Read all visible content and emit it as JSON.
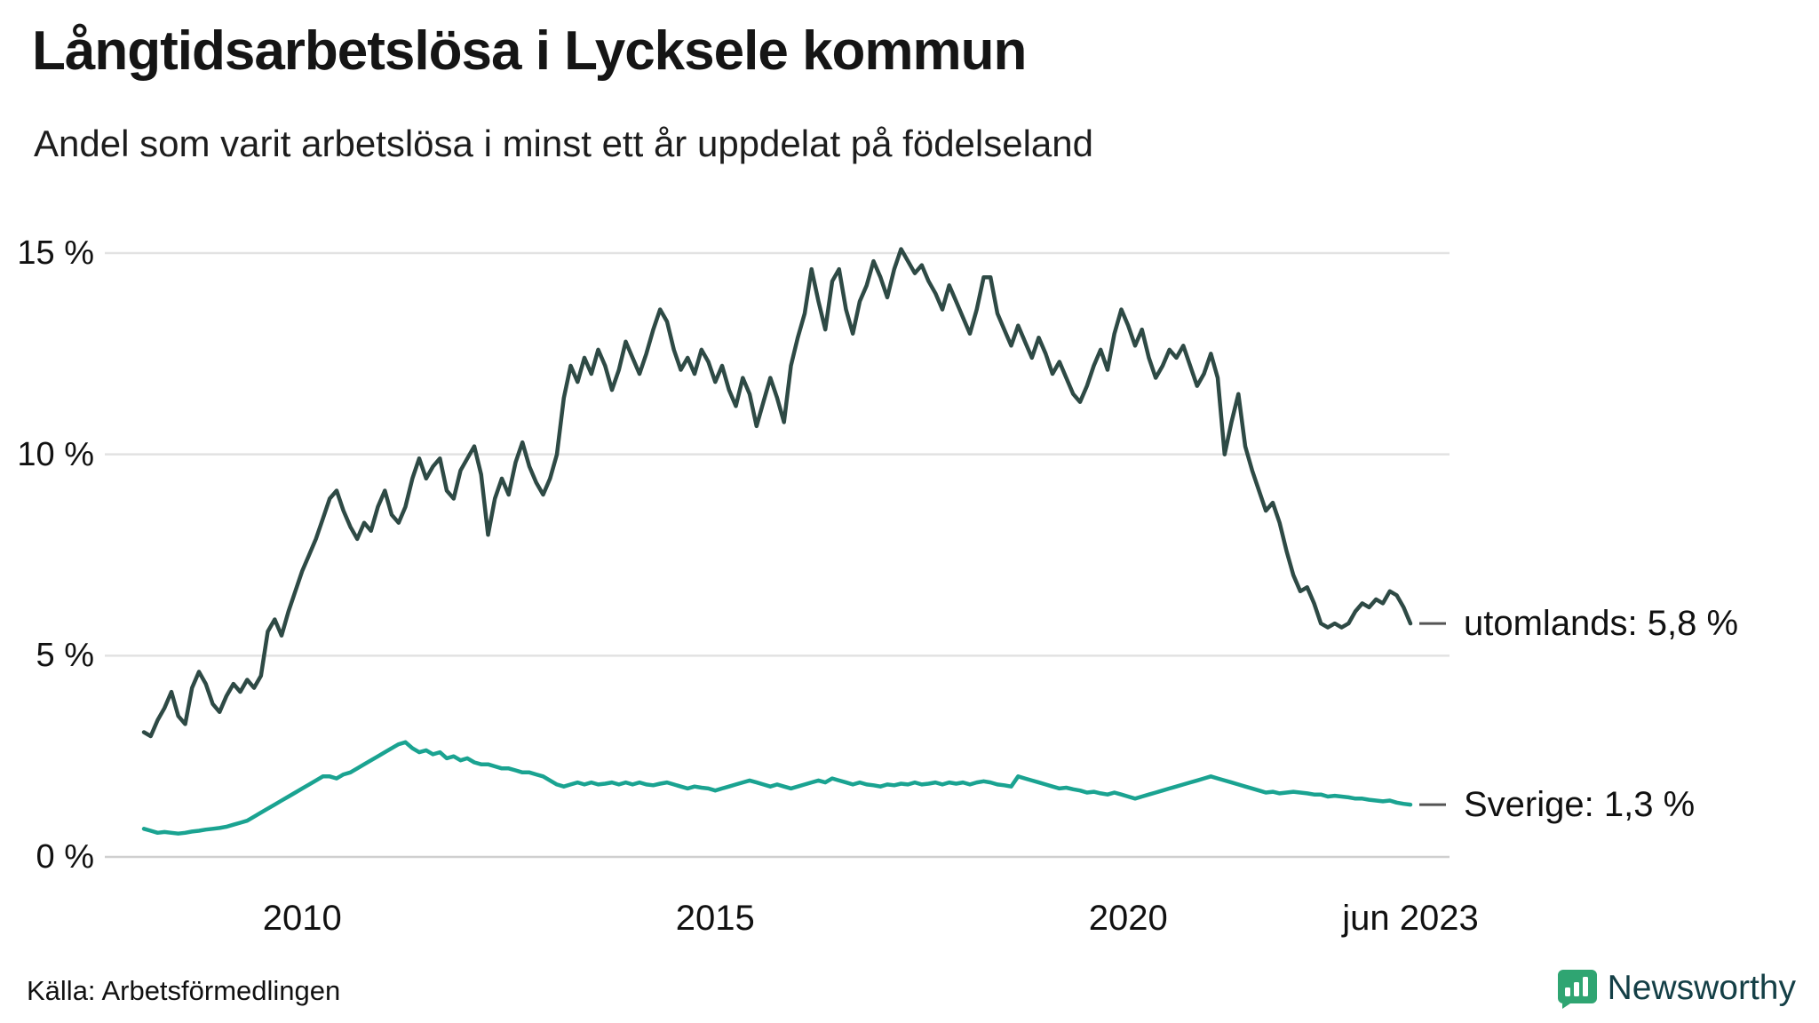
{
  "title": "Långtidsarbetslösa i Lycksele kommun",
  "subtitle": "Andel som varit arbetslösa i minst ett år uppdelat på födelseland",
  "source": "Källa: Arbetsförmedlingen",
  "brand": {
    "name": "Newsworthy",
    "icon_color": "#2fa572",
    "word_color": "#143f46"
  },
  "chart_data": {
    "type": "line",
    "title": "Långtidsarbetslösa i Lycksele kommun",
    "subtitle": "Andel som varit arbetslösa i minst ett år uppdelat på födelseland",
    "unit": "%",
    "frequency": "monthly",
    "x_domain": [
      2008.083,
      2023.417
    ],
    "ylim": [
      0,
      15.5
    ],
    "grid": "horizontal",
    "grid_color": "#e2e2e2",
    "zero_line_color": "#cfcfcf",
    "y_ticks": [
      {
        "label": "0 %",
        "value": 0
      },
      {
        "label": "5 %",
        "value": 5
      },
      {
        "label": "10 %",
        "value": 10
      },
      {
        "label": "15 %",
        "value": 15
      }
    ],
    "x_ticks": [
      {
        "label": "2010",
        "year": 2010
      },
      {
        "label": "2015",
        "year": 2015
      },
      {
        "label": "2020",
        "year": 2020
      },
      {
        "label": "jun 2023",
        "year": 2023.417
      }
    ],
    "legend_position": "right-annotations",
    "series": [
      {
        "name": "utomlands",
        "end_label": "utomlands: 5,8 %",
        "end_value": 5.8,
        "color": "#2e4a45",
        "values": [
          3.1,
          3.0,
          3.4,
          3.7,
          4.1,
          3.5,
          3.3,
          4.2,
          4.6,
          4.3,
          3.8,
          3.6,
          4.0,
          4.3,
          4.1,
          4.4,
          4.2,
          4.5,
          5.6,
          5.9,
          5.5,
          6.1,
          6.6,
          7.1,
          7.5,
          7.9,
          8.4,
          8.9,
          9.1,
          8.6,
          8.2,
          7.9,
          8.3,
          8.1,
          8.7,
          9.1,
          8.5,
          8.3,
          8.7,
          9.4,
          9.9,
          9.4,
          9.7,
          9.9,
          9.1,
          8.9,
          9.6,
          9.9,
          10.2,
          9.5,
          8.0,
          8.9,
          9.4,
          9.0,
          9.8,
          10.3,
          9.7,
          9.3,
          9.0,
          9.4,
          10.0,
          11.4,
          12.2,
          11.8,
          12.4,
          12.0,
          12.6,
          12.2,
          11.6,
          12.1,
          12.8,
          12.4,
          12.0,
          12.5,
          13.1,
          13.6,
          13.3,
          12.6,
          12.1,
          12.4,
          12.0,
          12.6,
          12.3,
          11.8,
          12.2,
          11.6,
          11.2,
          11.9,
          11.5,
          10.7,
          11.3,
          11.9,
          11.4,
          10.8,
          12.2,
          12.9,
          13.5,
          14.6,
          13.8,
          13.1,
          14.3,
          14.6,
          13.6,
          13.0,
          13.8,
          14.2,
          14.8,
          14.4,
          13.9,
          14.6,
          15.1,
          14.8,
          14.5,
          14.7,
          14.3,
          14.0,
          13.6,
          14.2,
          13.8,
          13.4,
          13.0,
          13.6,
          14.4,
          14.4,
          13.5,
          13.1,
          12.7,
          13.2,
          12.8,
          12.4,
          12.9,
          12.5,
          12.0,
          12.3,
          11.9,
          11.5,
          11.3,
          11.7,
          12.2,
          12.6,
          12.1,
          13.0,
          13.6,
          13.2,
          12.7,
          13.1,
          12.4,
          11.9,
          12.2,
          12.6,
          12.4,
          12.7,
          12.2,
          11.7,
          12.0,
          12.5,
          11.9,
          10.0,
          10.8,
          11.5,
          10.2,
          9.6,
          9.1,
          8.6,
          8.8,
          8.3,
          7.6,
          7.0,
          6.6,
          6.7,
          6.3,
          5.8,
          5.7,
          5.8,
          5.7,
          5.8,
          6.1,
          6.3,
          6.2,
          6.4,
          6.3,
          6.6,
          6.5,
          6.2,
          5.8
        ]
      },
      {
        "name": "Sverige",
        "end_label": "Sverige: 1,3 %",
        "end_value": 1.3,
        "color": "#1aa391",
        "values": [
          0.7,
          0.65,
          0.6,
          0.62,
          0.6,
          0.58,
          0.6,
          0.63,
          0.65,
          0.68,
          0.7,
          0.72,
          0.75,
          0.8,
          0.85,
          0.9,
          1.0,
          1.1,
          1.2,
          1.3,
          1.4,
          1.5,
          1.6,
          1.7,
          1.8,
          1.9,
          2.0,
          2.0,
          1.95,
          2.05,
          2.1,
          2.2,
          2.3,
          2.4,
          2.5,
          2.6,
          2.7,
          2.8,
          2.85,
          2.7,
          2.6,
          2.65,
          2.55,
          2.6,
          2.45,
          2.5,
          2.4,
          2.45,
          2.35,
          2.3,
          2.3,
          2.25,
          2.2,
          2.2,
          2.15,
          2.1,
          2.1,
          2.05,
          2.0,
          1.9,
          1.8,
          1.75,
          1.8,
          1.85,
          1.8,
          1.85,
          1.8,
          1.82,
          1.85,
          1.8,
          1.85,
          1.8,
          1.85,
          1.8,
          1.78,
          1.82,
          1.85,
          1.8,
          1.75,
          1.7,
          1.75,
          1.72,
          1.7,
          1.65,
          1.7,
          1.75,
          1.8,
          1.85,
          1.9,
          1.85,
          1.8,
          1.75,
          1.8,
          1.75,
          1.7,
          1.75,
          1.8,
          1.85,
          1.9,
          1.85,
          1.95,
          1.9,
          1.85,
          1.8,
          1.85,
          1.8,
          1.78,
          1.75,
          1.8,
          1.78,
          1.82,
          1.8,
          1.85,
          1.8,
          1.82,
          1.85,
          1.8,
          1.85,
          1.82,
          1.85,
          1.8,
          1.85,
          1.88,
          1.85,
          1.8,
          1.78,
          1.75,
          2.0,
          1.95,
          1.9,
          1.85,
          1.8,
          1.75,
          1.7,
          1.72,
          1.68,
          1.65,
          1.6,
          1.62,
          1.58,
          1.55,
          1.6,
          1.55,
          1.5,
          1.45,
          1.5,
          1.55,
          1.6,
          1.65,
          1.7,
          1.75,
          1.8,
          1.85,
          1.9,
          1.95,
          2.0,
          1.95,
          1.9,
          1.85,
          1.8,
          1.75,
          1.7,
          1.65,
          1.6,
          1.62,
          1.58,
          1.6,
          1.62,
          1.6,
          1.58,
          1.55,
          1.55,
          1.5,
          1.52,
          1.5,
          1.48,
          1.45,
          1.45,
          1.42,
          1.4,
          1.38,
          1.4,
          1.35,
          1.32,
          1.3
        ]
      }
    ]
  }
}
